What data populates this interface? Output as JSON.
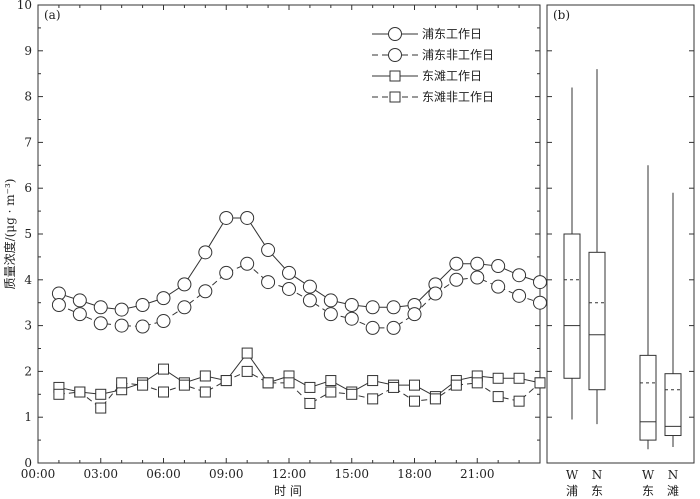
{
  "chart_data": [
    {
      "panel_label": "(a)",
      "type": "line",
      "xlabel": "时 间",
      "ylabel": "质量浓度/(μg · m⁻³)",
      "ylim": [
        0,
        10
      ],
      "yticks": [
        "0",
        "1",
        "2",
        "3",
        "4",
        "5",
        "6",
        "7",
        "8",
        "9",
        "10"
      ],
      "xlim": [
        0,
        24
      ],
      "xticks": [
        {
          "value": 0,
          "label": "00:00"
        },
        {
          "value": 3,
          "label": "03:00"
        },
        {
          "value": 6,
          "label": "06:00"
        },
        {
          "value": 9,
          "label": "09:00"
        },
        {
          "value": 12,
          "label": "12:00"
        },
        {
          "value": 15,
          "label": "15:00"
        },
        {
          "value": 18,
          "label": "18:00"
        },
        {
          "value": 21,
          "label": "21:00"
        }
      ],
      "x": [
        1,
        2,
        3,
        4,
        5,
        6,
        7,
        8,
        9,
        10,
        11,
        12,
        13,
        14,
        15,
        16,
        17,
        18,
        19,
        20,
        21,
        22,
        23,
        24
      ],
      "legend_position": "top-right",
      "series": [
        {
          "name": "浦东工作日",
          "marker": "circle",
          "line": "solid",
          "values": [
            3.7,
            3.55,
            3.4,
            3.35,
            3.45,
            3.6,
            3.9,
            4.6,
            5.35,
            5.35,
            4.65,
            4.15,
            3.85,
            3.55,
            3.45,
            3.4,
            3.4,
            3.45,
            3.9,
            4.35,
            4.35,
            4.3,
            4.1,
            3.95
          ]
        },
        {
          "name": "浦东非工作日",
          "marker": "circle",
          "line": "dashed",
          "values": [
            3.45,
            3.25,
            3.05,
            3.0,
            2.98,
            3.1,
            3.4,
            3.75,
            4.15,
            4.35,
            3.95,
            3.8,
            3.55,
            3.25,
            3.15,
            2.95,
            2.95,
            3.25,
            3.7,
            4.0,
            4.05,
            3.85,
            3.65,
            3.5
          ]
        },
        {
          "name": "东滩工作日",
          "marker": "square",
          "line": "solid",
          "values": [
            1.65,
            1.55,
            1.5,
            1.6,
            1.75,
            2.05,
            1.75,
            1.9,
            1.8,
            2.4,
            1.75,
            1.9,
            1.65,
            1.8,
            1.55,
            1.8,
            1.7,
            1.7,
            1.45,
            1.8,
            1.9,
            1.85,
            1.85,
            1.75
          ]
        },
        {
          "name": "东滩非工作日",
          "marker": "square",
          "line": "dashed",
          "values": [
            1.5,
            1.55,
            1.2,
            1.75,
            1.7,
            1.55,
            1.7,
            1.55,
            1.8,
            2.0,
            1.75,
            1.75,
            1.3,
            1.55,
            1.5,
            1.4,
            1.65,
            1.35,
            1.4,
            1.7,
            1.75,
            1.45,
            1.35,
            1.75
          ]
        }
      ]
    },
    {
      "panel_label": "(b)",
      "type": "box",
      "ylim": [
        0,
        10
      ],
      "groups": [
        {
          "category": "W",
          "group": "浦",
          "whisker_low": 0.95,
          "q1": 1.85,
          "median": 3.0,
          "mean": 4.0,
          "q3": 5.0,
          "whisker_high": 8.2
        },
        {
          "category": "N",
          "group": "东",
          "whisker_low": 0.85,
          "q1": 1.6,
          "median": 2.8,
          "mean": 3.5,
          "q3": 4.6,
          "whisker_high": 8.6
        },
        {
          "category": "W",
          "group": "东",
          "whisker_low": 0.3,
          "q1": 0.5,
          "median": 0.9,
          "mean": 1.75,
          "q3": 2.35,
          "whisker_high": 6.5
        },
        {
          "category": "N",
          "group": "滩",
          "whisker_low": 0.35,
          "q1": 0.6,
          "median": 0.8,
          "mean": 1.6,
          "q3": 1.95,
          "whisker_high": 5.9
        }
      ]
    }
  ]
}
